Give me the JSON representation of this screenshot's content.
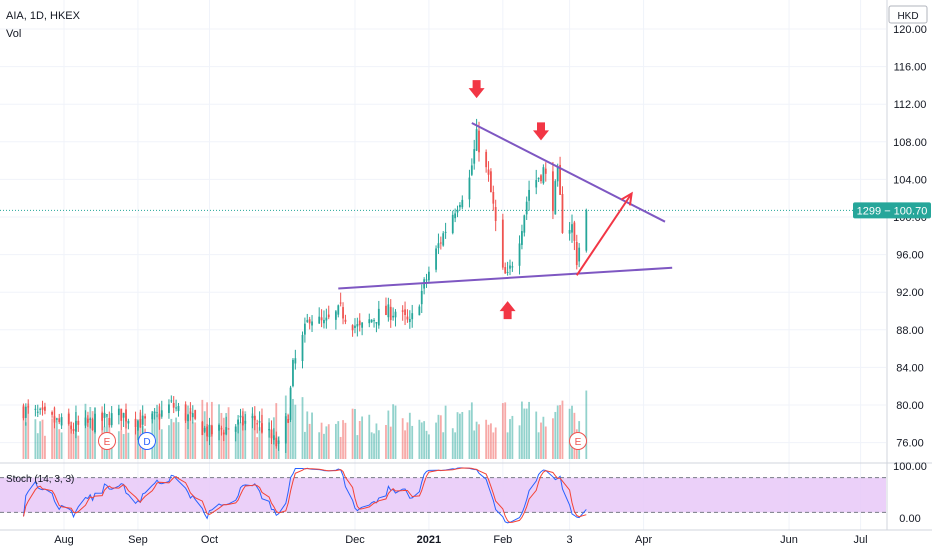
{
  "header": {
    "symbol": "AIA, 1D, HKEX",
    "volume_label": "Vol"
  },
  "currency_label": "HKD",
  "price_axis": {
    "ticks": [
      "120.00",
      "116.00",
      "112.00",
      "108.00",
      "104.00",
      "100.00",
      "96.00",
      "92.00",
      "88.00",
      "84.00",
      "80.00",
      "76.00"
    ]
  },
  "last_price_tag": {
    "text": "1299 − 100.70",
    "value": 100.7,
    "color": "#26a69a"
  },
  "stoch": {
    "label": "Stoch (14, 3, 3)",
    "ticks": [
      "100.00",
      "0.00"
    ],
    "upper_band": 80,
    "lower_band": 20,
    "band_color": "#e8c8f8"
  },
  "time_axis": {
    "labels": [
      "Aug",
      "Sep",
      "Oct",
      "Dec",
      "2021",
      "Feb",
      "3",
      "Apr",
      "Jun",
      "Jul"
    ]
  },
  "event_markers": [
    {
      "text": "E",
      "type": "earnings"
    },
    {
      "text": "D",
      "type": "dividend"
    },
    {
      "text": "E",
      "type": "earnings"
    }
  ],
  "colors": {
    "up": "#26a69a",
    "down": "#ef5350",
    "trendline": "#7e57c2",
    "annotation": "#f23645",
    "stoch_k": "#2962ff",
    "stoch_d": "#f44336"
  },
  "chart_data": {
    "type": "candlestick",
    "title": "AIA, 1D, HKEX",
    "ylabel": "HKD",
    "ylim": [
      73.5,
      122
    ],
    "trendlines": [
      {
        "name": "upper",
        "from": [
          "2021-01-19",
          110.0
        ],
        "to": [
          "2021-04-10",
          99.5
        ]
      },
      {
        "name": "lower",
        "from": [
          "2020-11-24",
          92.4
        ],
        "to": [
          "2021-04-13",
          94.6
        ]
      }
    ],
    "annotations": [
      {
        "type": "arrow-down",
        "at": [
          "2021-01-21",
          113.5
        ]
      },
      {
        "type": "arrow-down",
        "at": [
          "2021-02-17",
          109.0
        ]
      },
      {
        "type": "arrow-up",
        "at": [
          "2021-02-03",
          90.2
        ]
      },
      {
        "type": "arrow",
        "from": [
          "2021-03-04",
          93.8
        ],
        "to": [
          "2021-03-27",
          102.5
        ]
      }
    ],
    "series": [
      {
        "name": "price",
        "points": [
          [
            "2020-07-15",
            79.5
          ],
          [
            "2020-08-05",
            77.5
          ],
          [
            "2020-08-25",
            79.0
          ],
          [
            "2020-09-05",
            78.0
          ],
          [
            "2020-09-15",
            80.0
          ],
          [
            "2020-10-01",
            77.0
          ],
          [
            "2020-10-20",
            78.5
          ],
          [
            "2020-10-30",
            75.5
          ],
          [
            "2020-11-03",
            79.0
          ],
          [
            "2020-11-05",
            84.0
          ],
          [
            "2020-11-09",
            87.0
          ],
          [
            "2020-11-12",
            89.5
          ],
          [
            "2020-11-18",
            88.5
          ],
          [
            "2020-11-25",
            90.0
          ],
          [
            "2020-12-03",
            88.0
          ],
          [
            "2020-12-10",
            89.5
          ],
          [
            "2020-12-18",
            90.0
          ],
          [
            "2020-12-24",
            88.5
          ],
          [
            "2020-12-29",
            92.0
          ],
          [
            "2021-01-05",
            97.0
          ],
          [
            "2021-01-12",
            101.0
          ],
          [
            "2021-01-18",
            104.0
          ],
          [
            "2021-01-21",
            108.5
          ],
          [
            "2021-01-26",
            104.0
          ],
          [
            "2021-01-28",
            101.0
          ],
          [
            "2021-02-01",
            94.0
          ],
          [
            "2021-02-03",
            93.5
          ],
          [
            "2021-02-08",
            98.0
          ],
          [
            "2021-02-12",
            103.0
          ],
          [
            "2021-02-18",
            105.0
          ],
          [
            "2021-02-22",
            101.5
          ],
          [
            "2021-02-24",
            104.5
          ],
          [
            "2021-02-26",
            99.0
          ],
          [
            "2021-03-02",
            99.0
          ],
          [
            "2021-03-04",
            95.5
          ],
          [
            "2021-03-08",
            100.7
          ]
        ]
      }
    ]
  }
}
